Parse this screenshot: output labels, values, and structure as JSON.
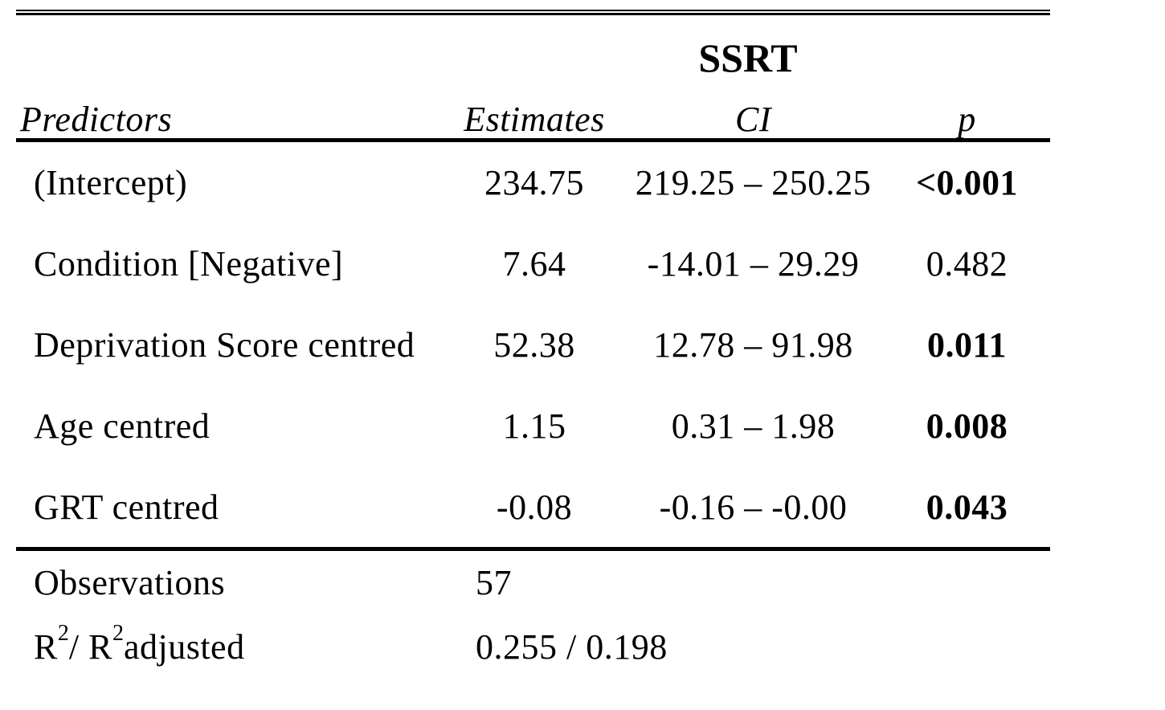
{
  "table": {
    "dependent_variable": "SSRT",
    "columns": {
      "predictors": "Predictors",
      "estimates": "Estimates",
      "ci": "CI",
      "p": "p"
    },
    "rows": [
      {
        "predictor": "(Intercept)",
        "estimate": "234.75",
        "ci": "219.25 – 250.25",
        "p": "<0.001",
        "significant": true
      },
      {
        "predictor": "Condition [Negative]",
        "estimate": "7.64",
        "ci": "-14.01 – 29.29",
        "p": "0.482",
        "significant": false
      },
      {
        "predictor": "Deprivation Score centred",
        "estimate": "52.38",
        "ci": "12.78 – 91.98",
        "p": "0.011",
        "significant": true
      },
      {
        "predictor": "Age centred",
        "estimate": "1.15",
        "ci": "0.31 – 1.98",
        "p": "0.008",
        "significant": true
      },
      {
        "predictor": "GRT centred",
        "estimate": "-0.08",
        "ci": "-0.16 – -0.00",
        "p": "0.043",
        "significant": true
      }
    ],
    "summary": {
      "observations_label": "Observations",
      "observations_value": "57",
      "r2_label": {
        "base": "R",
        "sup1": "2",
        "separator": " / R",
        "sup2": "2",
        "suffix": " adjusted"
      },
      "r2_value": "0.255 / 0.198"
    },
    "colors": {
      "text": "#000000",
      "background": "#ffffff",
      "rules": "#000000"
    }
  }
}
